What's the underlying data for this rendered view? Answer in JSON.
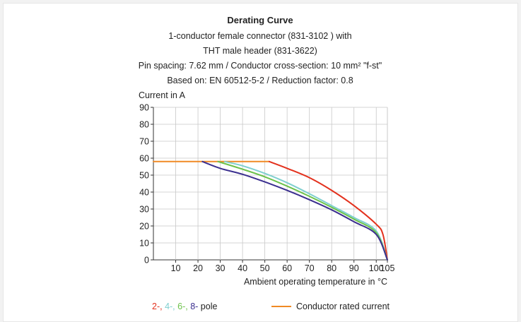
{
  "chart_data": {
    "type": "line",
    "title": "Derating Curve",
    "subtitle_lines": [
      "1-conductor female connector (831-3102 ) with",
      "THT male header (831-3622)",
      "Pin spacing: 7.62 mm / Conductor cross-section: 10 mm² \"f-st\"",
      "Based on: EN 60512-5-2 / Reduction factor: 0.8"
    ],
    "ylabel": "Current in A",
    "xlabel": "Ambient operating temperature in °C",
    "xlim": [
      0,
      105
    ],
    "ylim": [
      0,
      90
    ],
    "x_ticks": [
      10,
      20,
      30,
      40,
      50,
      60,
      70,
      80,
      90,
      100,
      105
    ],
    "y_ticks": [
      0,
      10,
      20,
      30,
      40,
      50,
      60,
      70,
      80,
      90
    ],
    "grid": true,
    "series": [
      {
        "name": "2-",
        "color": "#e3311d",
        "x": [
          52,
          60,
          70,
          80,
          90,
          100,
          103,
          105
        ],
        "y": [
          58,
          54,
          48.5,
          41,
          32,
          21,
          15,
          0
        ]
      },
      {
        "name": "4-",
        "color": "#7fcfcf",
        "x": [
          32,
          40,
          50,
          60,
          70,
          80,
          90,
          100,
          105
        ],
        "y": [
          58,
          55.5,
          51,
          45.5,
          39,
          32,
          25,
          17,
          0
        ]
      },
      {
        "name": "6-",
        "color": "#6cc24a",
        "x": [
          29,
          40,
          50,
          60,
          70,
          80,
          90,
          100,
          105
        ],
        "y": [
          58,
          53.5,
          49,
          43.5,
          37.5,
          31,
          24,
          16,
          0
        ]
      },
      {
        "name": "8-",
        "color": "#3b2f8f",
        "x": [
          22,
          30,
          40,
          50,
          60,
          70,
          80,
          90,
          100,
          105
        ],
        "y": [
          58,
          54,
          50.5,
          46,
          41,
          35.5,
          29.5,
          22.5,
          15,
          0
        ]
      },
      {
        "name": "Conductor rated current",
        "color": "#f08a24",
        "x": [
          0,
          52
        ],
        "y": [
          58,
          58
        ]
      }
    ],
    "legend": {
      "placement": "bottom",
      "pole_suffix": " pole",
      "pole_colors": [
        "#e3311d",
        "#7fcfcf",
        "#6cc24a",
        "#3b2f8f"
      ],
      "rated_label": "Conductor rated current",
      "rated_color": "#f08a24"
    }
  }
}
